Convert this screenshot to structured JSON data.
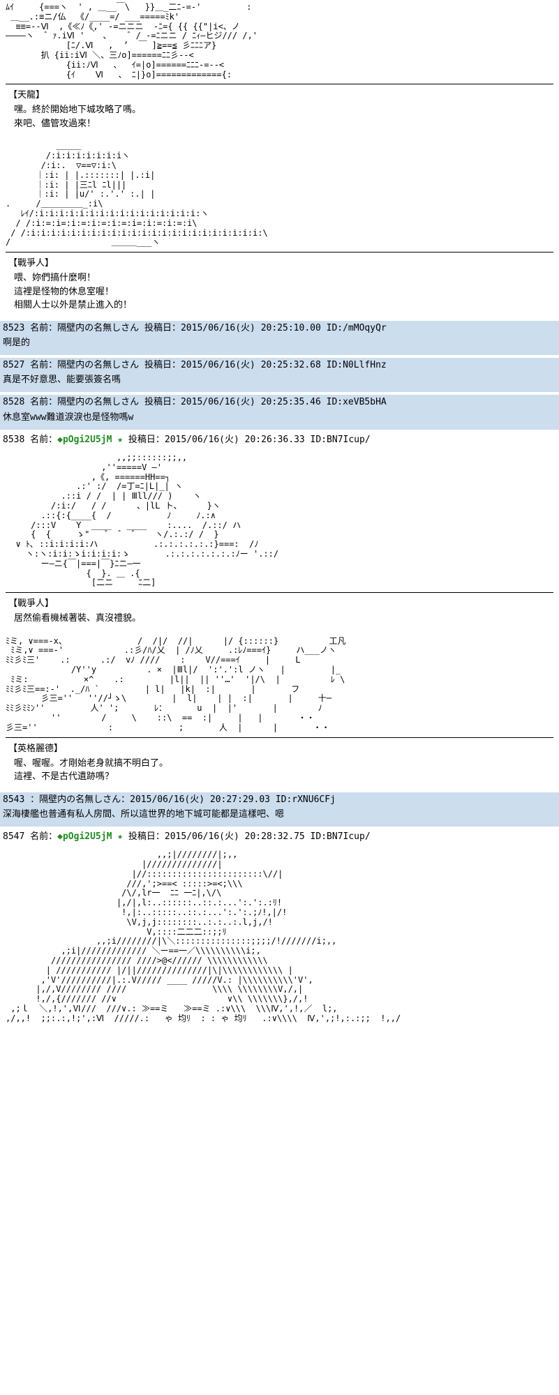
{
  "section1": {
    "aa": "ﾑｲ     {===ヽ  ' , ＿__￣\\   }}＿_二ﾆ-=-'         :\n ＿__.:≡ニ/仏  《/____=/ ___=====ﾐk'\n  ≡≡=--Ⅵ  ,《≪ﾉ《,' -=ニニニ  -ﾆ={ {{ {{\"|i<、ノ\n――――ヽ  ゛ｧ.iⅥ ' ｀ ､    ゛/ -=ﾆニニ / ﾆｨ—ヒジ/// /,'\n            [ﾆ/.Ⅵ   ,  ’  ￣ ]≧==≦ 彡ﾆﾆﾆア}\n       扒 {ii:iⅥ ＼、三ﾉo]======ﾆﾆ彡--<\n            {ii:ﾉⅥ   、  ｲ=|o]======ﾆﾆﾆ-=--<\n            {ｲ    Ⅵ   、 ﾆ|}o]============={:",
    "name": "【天龍】",
    "line1": "嘿。終於開始地下城攻略了嗎。",
    "line2": "來吧、儘管攻過來！"
  },
  "section2": {
    "aa": "          ＿＿＿\n        /:i:i:i:i:i:i:iヽ\n       /:i:.  ▽==▽:i:\\\n      ｜:i: | |.:::::::| |.:i|\n      ｜:i: | |三ﾆl ﾆl|||\n      ｜:i: | |u/' :.'.' :.| |\n.     /＿＿＿＿＿_:i\\\n   ﾚｲ/:i:i:i:i:i:i:i:i:i:i:i:i:i:i:i:i:ヽ\n  / /:i:=:i=:i:=:i:=:i:=:i=:i:=:i:=:i\\\n / /:i:i:i:i:i:i:i:i:i:i:i:i:i:i:i:i:i:i:i:i:i:i:i:\\\n/                    ＿＿＿___ヽ",
    "name": "【戰爭人】",
    "line1": "喂、妳們搞什麼啊！",
    "line2": "這裡是怪物的休息室喔！",
    "line3": "相關人士以外是禁止進入的！"
  },
  "replies1": [
    {
      "header": "8523 名前：隔壁内の名無しさん 投稿日：2015/06/16(火) 20:25:10.00 ID:/mMOqyQr",
      "body": "啊是的"
    },
    {
      "header": "8527 名前：隔壁内の名無しさん 投稿日：2015/06/16(火) 20:25:32.68 ID:N0LlfHnz",
      "body": "真是不好意思、能要張簽名嗎"
    },
    {
      "header": "8528 名前：隔壁内の名無しさん 投稿日：2015/06/16(火) 20:25:35.46 ID:xeVB5bHA",
      "body": "休息室www難道淚淚也是怪物嗎w"
    }
  ],
  "post8538": {
    "num": "8538 名前：",
    "trip": "◆pOgi2U5jM ★",
    "rest": " 投稿日：2015/06/16(火) 20:26:36.33 ID:BN7Icup/",
    "aa": "                      ,,;;::::::;;,,\n                   ,''=====V ―'\n                 ,《, ======HH==┐\n              .:' :/  /=丁=ﾆ|L|_| ヽ\n           .::i / /  | | Ⅲll/// )    ヽ\n         /:i:/   / /      、|lL ト、     }ヽ\n       .::{:{____{  /           ﾉ     ﾉ.:∧\n     /:::V    Y  ____   ____    :....  /.::/ ハ\n     {  {     ゝ\"   ゛ ゛ ゛   ヽ/.:.:/ /  }\n  ∨ ﾄ､ ::i:i:i:i:ハ           .:.:.:.:.:.:}===:  /ﾉ\n    ヽ:ヽ:i:i:ゝi:i:i:i:ゝ       .:.:.:.:.:.:.:ﾉー '.::/\n       ー—ニ{￣|===|￣}ﾆニ—一\n                {  }. ＿ .{\n                 [二ニ     ﾆ二]",
    "name": "【戰爭人】",
    "line1": "居然偷看機械著裝、真沒禮貌。"
  },
  "section3": {
    "aa": "ﾐミ, ∨===-x、              /  /|/  //|      |/ {::::::}          工凡\n ﾐミ,∨ ===-'            .:彡/ﾊ/乂  | /ﾉ乂     .:ﾚﾉ===ｲ}     ハ___ノヽ\nﾐﾐ彡ﾐ三'    .:      .:/  vﾉ ////    :    V//===ｲ     |     L\n             /Y''y          . ×  |Ⅲl|/  ':'.':l ノヽ   |         |_\n ﾐミ:           ×^    .:         |l||  || ''…'  '|/\\  |          ﾚ \\\nﾐﾐ彡ﾐ三==:-'  ._/ﾊ `         | l|   |k|  :|       |       フ\n       彡三=''   ''//┘ゝ\\         |  l|    | |  :|       |     十─\nﾐﾐ彡ﾐﾐﾝ''         人' ';       ﾚ：      u  |  |'       |        ﾉ\n         ''        /     \\    ::\\  ==  :|     |   |       ・・\n彡三=''              :             ;       人  |      |       ・・",
    "name": "【英格麗德】",
    "line1": "喔、喔喔。才剛始老身就搞不明白了。",
    "line2": "這裡、不是古代遺跡嗎？"
  },
  "reply8543": {
    "header": "8543 ：隔壁内の名無しさん：2015/06/16(火) 20:27:29.03 ID:rXNU6CFj",
    "body": "深海棲艦也普通有私人房間、所以這世界的地下城可能都是這樣吧、嗯"
  },
  "post8547": {
    "num": "8547 名前：",
    "trip": "◆pOgi2U5jM ★",
    "rest": " 投稿日：2015/06/16(火) 20:28:32.75 ID:BN7Icup/",
    "aa": "                              ,,;|////////|;,,\n                           |//////////////|\n                         |//:::::::::::::::::::::::\\//|\n                        ///,';>==< :::::>=<;\\\\\\\n                       /\\/,lr一  ﾆﾆ 一ﾆ|,\\/\\\n                      |,/|,l:..::::::..::.:...':.':.:ﾘ!\n                       !,|:..:::::..::.:...':.':.;ﾉ!,|/!\n                        \\V,j,j::::::::..:.:..:.l,j,/!\n                            V,::::二二二::;;ﾘ\n                  ,,;i////////|\\＼:::::::::::::::;;;;/!///////i;,,\n           ,;i|///////////// ＼ー==一／\\\\\\\\\\\\\\\\\\\\i;,\n         //////////////// ////>@<////// \\\\\\\\\\\\\\\\\\\\\\\\\n        | /////////// |/||//////////////|\\|\\\\\\\\\\\\\\\\\\\\\\\\ |\n       ,'V'//////////|.:.V///// ____ /////V.: |\\\\\\\\\\\\\\\\\\\\'V',\n      |,/,V//////// ////                 \\\\\\\\ \\\\\\\\\\\\\\\\V,/,|\n      !,/,{/////// //∨                      ∨\\\\ \\\\\\\\\\\\\\},/,!\n ,;ｌ  ＼,!,',Ⅵ///  ///∨.: ≫==ミ   ≫==ミ .:∨\\\\\\  \\\\\\Ⅳ,',!,／  l;,\n,/,,!  ;;:.:,!;',:Ⅵ  /////.:   ゃ 均ﾘ  : : ゃ 均ﾘ   .:∨\\\\\\\\  Ⅳ,',;!,:.:;;  !,,/"
  }
}
